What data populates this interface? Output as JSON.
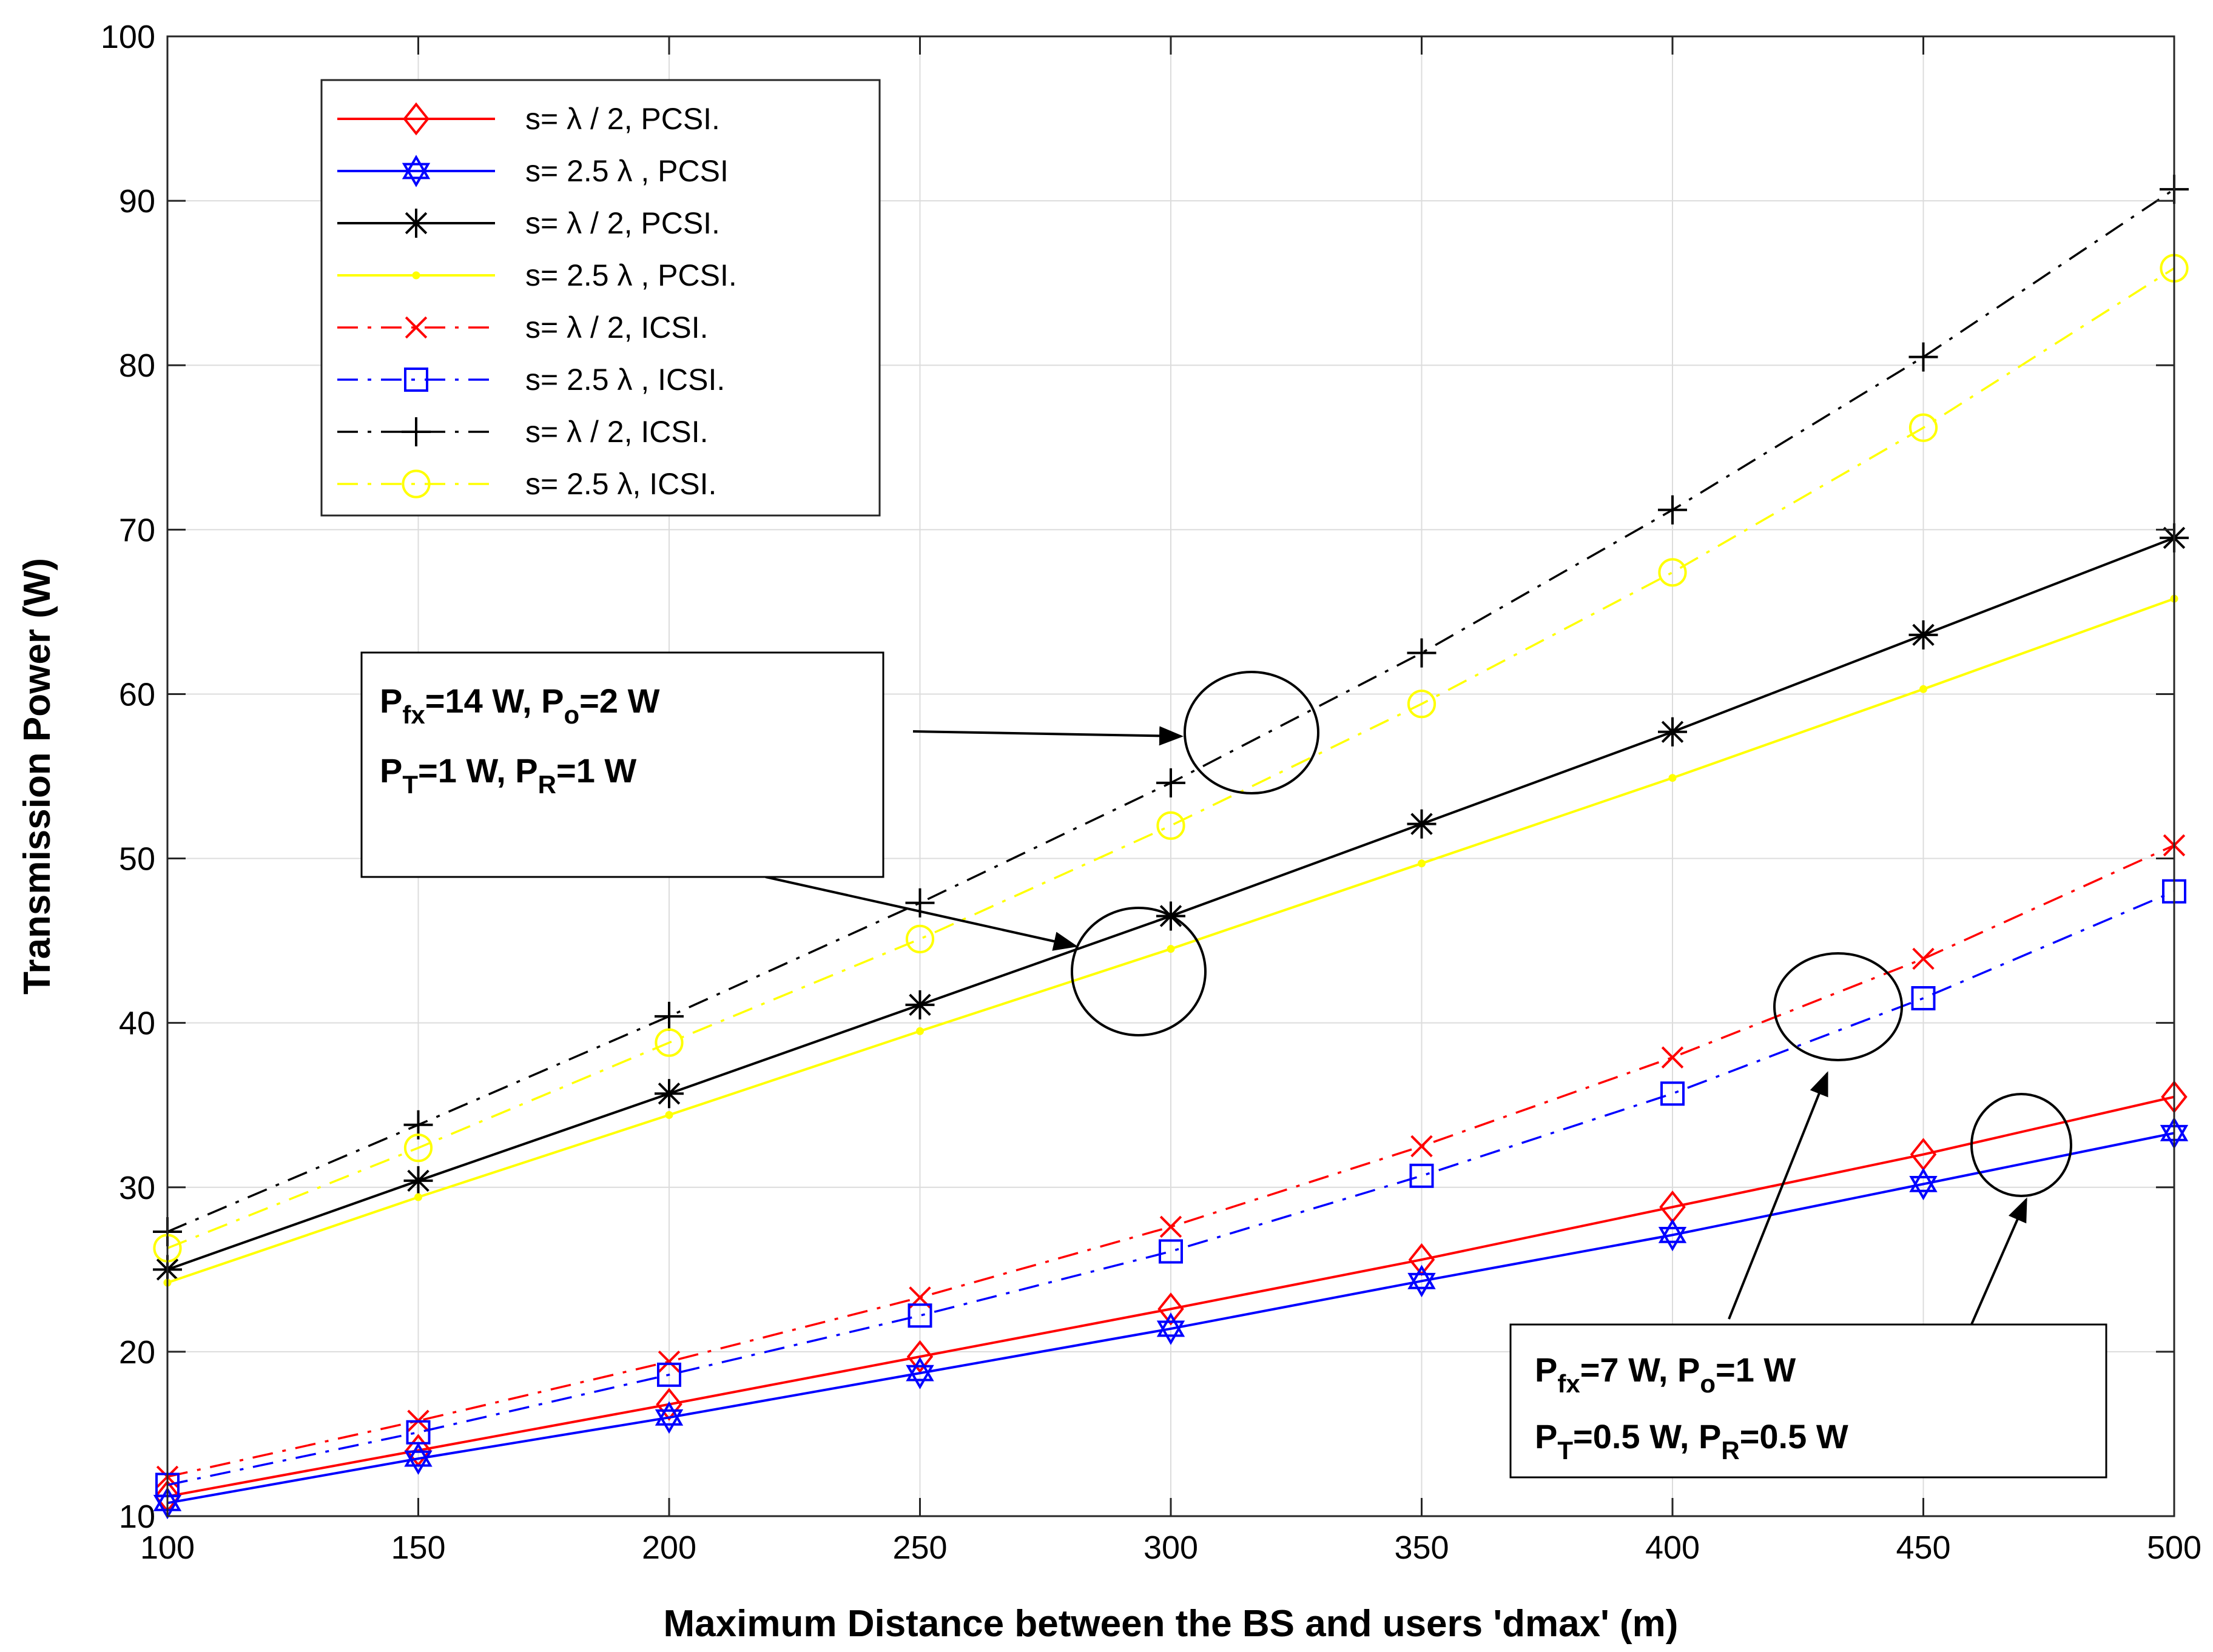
{
  "chart_data": {
    "type": "line",
    "xlabel": "Maximum Distance between the BS and users 'dmax' (m)",
    "ylabel": "Transmission Power (W)",
    "xlim": [
      100,
      500
    ],
    "ylim": [
      10,
      100
    ],
    "grid": true,
    "legend_position": "top-left",
    "x": [
      100,
      150,
      200,
      250,
      300,
      350,
      400,
      450,
      500
    ],
    "xticks": [
      "100",
      "150",
      "200",
      "250",
      "300",
      "350",
      "400",
      "450",
      "500"
    ],
    "yticks": [
      "10",
      "20",
      "30",
      "40",
      "50",
      "60",
      "70",
      "80",
      "90",
      "100"
    ],
    "xtick_values": [
      100,
      150,
      200,
      250,
      300,
      350,
      400,
      450,
      500
    ],
    "ytick_values": [
      10,
      20,
      30,
      40,
      50,
      60,
      70,
      80,
      90,
      100
    ],
    "series": [
      {
        "name": "s= λ / 2, PCSI.",
        "color": "#ff0000",
        "line": "solid",
        "marker": "diamond",
        "values": [
          11.2,
          14.0,
          16.8,
          19.7,
          22.6,
          25.6,
          28.8,
          32.0,
          35.5
        ]
      },
      {
        "name": "s= 2.5 λ , PCSI",
        "color": "#0000ff",
        "line": "solid",
        "marker": "hexagram",
        "values": [
          10.8,
          13.5,
          16.0,
          18.7,
          21.4,
          24.3,
          27.1,
          30.2,
          33.3
        ]
      },
      {
        "name": "s= λ / 2, PCSI.",
        "color": "#000000",
        "line": "solid",
        "marker": "asterisk",
        "values": [
          25.0,
          30.4,
          35.7,
          41.1,
          46.5,
          52.1,
          57.7,
          63.6,
          69.5
        ]
      },
      {
        "name": "s= 2.5 λ , PCSI.",
        "color": "#ffff00",
        "line": "solid",
        "marker": "dot",
        "values": [
          24.2,
          29.4,
          34.4,
          39.5,
          44.5,
          49.7,
          54.9,
          60.3,
          65.8
        ]
      },
      {
        "name": "s= λ / 2, ICSI.",
        "color": "#ff0000",
        "line": "dashdot",
        "marker": "x",
        "values": [
          12.4,
          15.8,
          19.4,
          23.3,
          27.6,
          32.5,
          37.9,
          43.9,
          50.8
        ]
      },
      {
        "name": "s= 2.5 λ , ICSI.",
        "color": "#0000ff",
        "line": "dashdot",
        "marker": "square",
        "values": [
          11.9,
          15.1,
          18.6,
          22.2,
          26.1,
          30.7,
          35.7,
          41.5,
          48.0
        ]
      },
      {
        "name": "s= λ / 2, ICSI.",
        "color": "#000000",
        "line": "dashdot",
        "marker": "plus",
        "values": [
          27.3,
          33.8,
          40.4,
          47.3,
          54.6,
          62.5,
          71.2,
          80.5,
          90.7
        ]
      },
      {
        "name": "s= 2.5 λ, ICSI.",
        "color": "#ffff00",
        "line": "dashdot",
        "marker": "circle",
        "values": [
          26.3,
          32.4,
          38.8,
          45.1,
          52.0,
          59.4,
          67.4,
          76.2,
          85.9
        ]
      }
    ],
    "annotations": [
      {
        "lines": [
          [
            {
              "t": "P"
            },
            {
              "t": "fx",
              "sub": true
            },
            {
              "t": "=14 W, P"
            },
            {
              "t": "o",
              "sub": true
            },
            {
              "t": "=2 W"
            }
          ],
          [
            {
              "t": "P"
            },
            {
              "t": "T",
              "sub": true
            },
            {
              "t": "=1 W, P"
            },
            {
              "t": "R",
              "sub": true
            },
            {
              "t": "=1 W"
            }
          ]
        ]
      },
      {
        "lines": [
          [
            {
              "t": "P"
            },
            {
              "t": "fx",
              "sub": true
            },
            {
              "t": "=7 W, P"
            },
            {
              "t": "o",
              "sub": true
            },
            {
              "t": "=1 W"
            }
          ],
          [
            {
              "t": "P"
            },
            {
              "t": "T",
              "sub": true
            },
            {
              "t": "=0.5 W, P"
            },
            {
              "t": "R",
              "sub": true
            },
            {
              "t": "=0.5 W"
            }
          ]
        ]
      }
    ]
  }
}
